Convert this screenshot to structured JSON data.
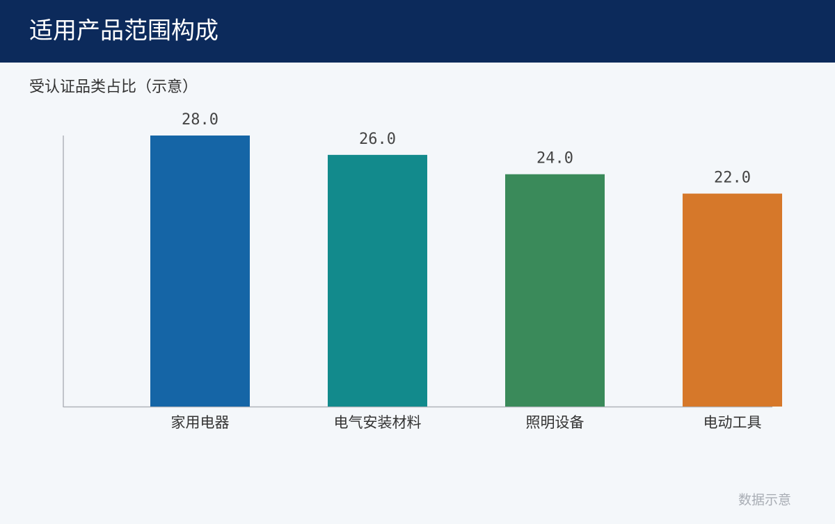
{
  "chart_data": {
    "type": "bar",
    "title": "适用产品范围构成",
    "subtitle": "受认证品类占比（示意）",
    "categories": [
      "家用电器",
      "电气安装材料",
      "照明设备",
      "电动工具"
    ],
    "values": [
      28,
      26,
      24,
      22
    ],
    "value_labels": [
      "28.0",
      "26.0",
      "24.0",
      "22.0"
    ],
    "colors": [
      "#1565a6",
      "#128a8c",
      "#3a8a5a",
      "#d6782a"
    ],
    "ylim": [
      0,
      28
    ],
    "note": "数据示意"
  }
}
